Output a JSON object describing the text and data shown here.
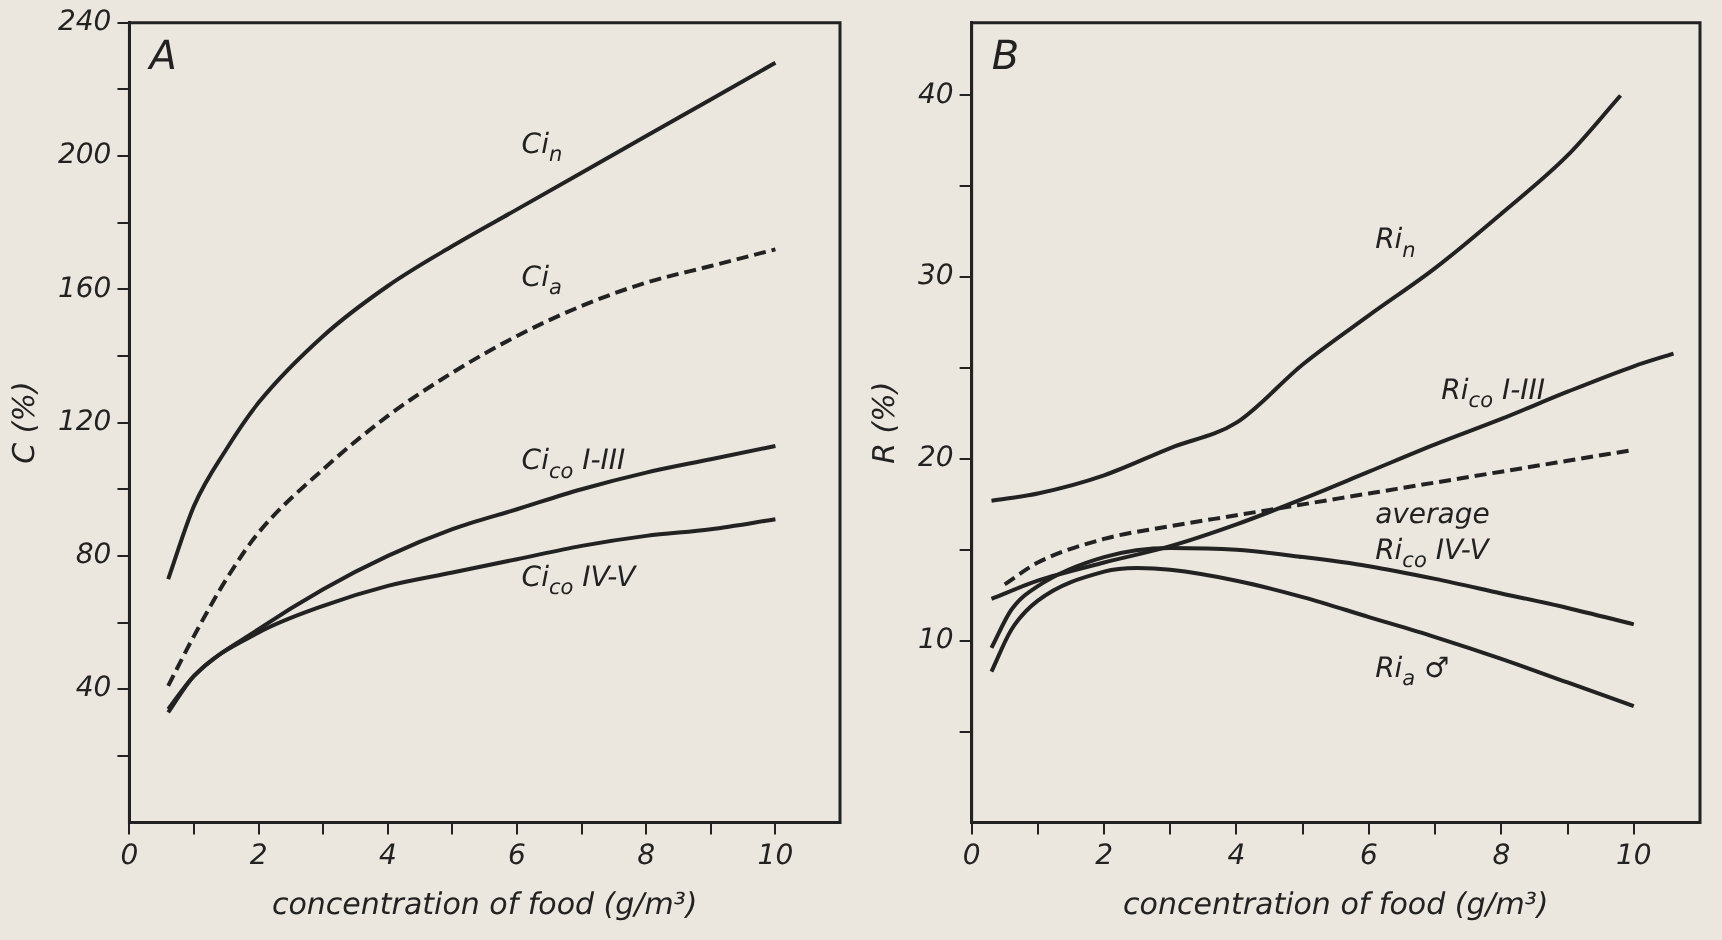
{
  "chart_data": [
    {
      "type": "line",
      "annotations": [
        "A"
      ],
      "xlabel": "concentration of food (g/m³)",
      "ylabel": "C (%)",
      "xlim": [
        0,
        11
      ],
      "ylim": [
        0,
        240
      ],
      "xticks": [
        0,
        {
          "value": 1,
          "label": null
        },
        2,
        {
          "value": 3,
          "label": null
        },
        4,
        {
          "value": 5,
          "label": null
        },
        6,
        {
          "value": 7,
          "label": null
        },
        8,
        {
          "value": 9,
          "label": null
        },
        10
      ],
      "yticks": [
        {
          "value": 20,
          "label": null
        },
        40,
        {
          "value": 60,
          "label": null
        },
        80,
        {
          "value": 100,
          "label": null
        },
        120,
        {
          "value": 140,
          "label": null
        },
        160,
        {
          "value": 180,
          "label": null
        },
        200,
        {
          "value": 220,
          "label": null
        },
        240
      ],
      "marker": "none",
      "legend": false,
      "series": [
        {
          "name": "Ci$_{n}$",
          "color": "#222222",
          "line_style": "solid",
          "x": [
            0.6,
            1,
            1.5,
            2,
            3,
            4,
            5,
            6,
            7,
            8,
            9,
            10
          ],
          "values": [
            73,
            95,
            112,
            126,
            146,
            161,
            173,
            184,
            195,
            206,
            217,
            228
          ]
        },
        {
          "name": "Ci$_{a}$",
          "color": "#222222",
          "line_style": "dashed",
          "x": [
            0.6,
            1,
            1.5,
            2,
            3,
            4,
            5,
            6,
            7,
            8,
            9,
            10
          ],
          "values": [
            41,
            56,
            73,
            87,
            106,
            122,
            135,
            146,
            155,
            162,
            167,
            172
          ]
        },
        {
          "name": "Ci$_{co}$ I-III",
          "color": "#222222",
          "line_style": "solid",
          "x": [
            0.6,
            1,
            2,
            3,
            4,
            5,
            6,
            7,
            8,
            9,
            10
          ],
          "values": [
            34,
            44,
            58,
            70,
            80,
            88,
            94,
            100,
            105,
            109,
            113
          ]
        },
        {
          "name": "Ci$_{co}$ IV-V",
          "color": "#222222",
          "line_style": "solid",
          "x": [
            0.6,
            1,
            2,
            3,
            4,
            5,
            6,
            7,
            8,
            9,
            10
          ],
          "values": [
            33,
            44,
            57,
            65,
            71,
            75,
            79,
            83,
            86,
            88,
            91
          ]
        }
      ]
    },
    {
      "type": "line",
      "annotations": [
        "B"
      ],
      "xlabel": "concentration of food (g/m³)",
      "ylabel": "R (%)",
      "xlim": [
        0,
        11
      ],
      "ylim": [
        0,
        44
      ],
      "xticks": [
        0,
        {
          "value": 1,
          "label": null
        },
        2,
        {
          "value": 3,
          "label": null
        },
        4,
        {
          "value": 5,
          "label": null
        },
        6,
        {
          "value": 7,
          "label": null
        },
        8,
        {
          "value": 9,
          "label": null
        },
        10
      ],
      "yticks": [
        {
          "value": 5,
          "label": null
        },
        10,
        {
          "value": 15,
          "label": null
        },
        20,
        {
          "value": 25,
          "label": null
        },
        30,
        {
          "value": 35,
          "label": null
        },
        40
      ],
      "marker": "none",
      "legend": false,
      "series": [
        {
          "name": "Ri$_{n}$",
          "color": "#222222",
          "line_style": "solid",
          "x": [
            0.3,
            1,
            2,
            3,
            4,
            5,
            6,
            7,
            8,
            9,
            9.8
          ],
          "values": [
            17.7,
            18.1,
            19.1,
            20.6,
            22,
            25.2,
            27.9,
            30.5,
            33.5,
            36.7,
            40
          ]
        },
        {
          "name": "Ri$_{co}$ I-III",
          "color": "#222222",
          "line_style": "solid",
          "x": [
            0.3,
            1,
            2,
            3,
            4,
            5,
            6,
            7,
            8,
            9,
            10,
            10.6
          ],
          "values": [
            12.3,
            13.3,
            14.3,
            15.2,
            16.4,
            17.8,
            19.3,
            20.8,
            22.2,
            23.7,
            25.1,
            25.8
          ]
        },
        {
          "name": "average",
          "color": "#222222",
          "line_style": "dashed",
          "x": [
            0.5,
            1,
            2,
            3,
            4,
            5,
            6,
            7,
            8,
            9,
            10
          ],
          "values": [
            13.1,
            14.3,
            15.6,
            16.3,
            16.9,
            17.5,
            18.1,
            18.7,
            19.3,
            19.9,
            20.5
          ]
        },
        {
          "name": "Ri$_{co}$ IV-V",
          "color": "#222222",
          "line_style": "solid",
          "x": [
            0.3,
            0.6,
            1,
            2,
            3,
            4,
            5,
            6,
            7,
            8,
            9,
            10
          ],
          "values": [
            9.6,
            11.7,
            13,
            14.6,
            15.1,
            15,
            14.6,
            14.1,
            13.4,
            12.6,
            11.8,
            10.9
          ]
        },
        {
          "name": "Ri$_{a}$ ♂",
          "color": "#222222",
          "line_style": "solid",
          "x": [
            0.3,
            0.6,
            1,
            2,
            2.5,
            3,
            4,
            5,
            6,
            7,
            8,
            9,
            10
          ],
          "values": [
            8.3,
            10.6,
            12.2,
            13.8,
            14,
            13.9,
            13.3,
            12.4,
            11.3,
            10.2,
            9,
            7.7,
            6.4
          ]
        }
      ]
    }
  ]
}
